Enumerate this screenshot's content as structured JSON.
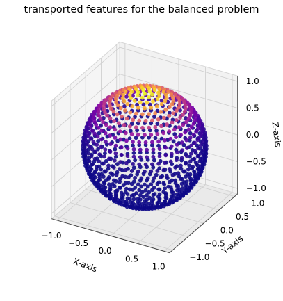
{
  "chart_data": {
    "type": "scatter",
    "projection": "3d",
    "title": "transported features for the balanced problem",
    "xlabel": "X-axis",
    "ylabel": "Y-axis",
    "zlabel": "Z-axis",
    "xlim": [
      -1.1,
      1.1
    ],
    "ylim": [
      -1.1,
      1.1
    ],
    "zlim": [
      -1.1,
      1.1
    ],
    "xticks": [
      "−1.0",
      "−0.5",
      "0.0",
      "0.5",
      "1.0"
    ],
    "yticks": [
      "−1.0",
      "−0.5",
      "0.0",
      "0.5",
      "1.0"
    ],
    "zticks": [
      "−1.0",
      "−0.5",
      "0.0",
      "0.5",
      "1.0"
    ],
    "xtick_values": [
      -1.0,
      -0.5,
      0.0,
      0.5,
      1.0
    ],
    "ytick_values": [
      -1.0,
      -0.5,
      0.0,
      0.5,
      1.0
    ],
    "ztick_values": [
      -1.0,
      -0.5,
      0.0,
      0.5,
      1.0
    ],
    "grid": true,
    "colormap": "plasma",
    "color_by": "z",
    "shape": "unit sphere",
    "latitude_rings": 26,
    "points_per_equator_ring": 60,
    "pane_color": "#f2f2f2",
    "grid_color": "#d0d0d0"
  }
}
